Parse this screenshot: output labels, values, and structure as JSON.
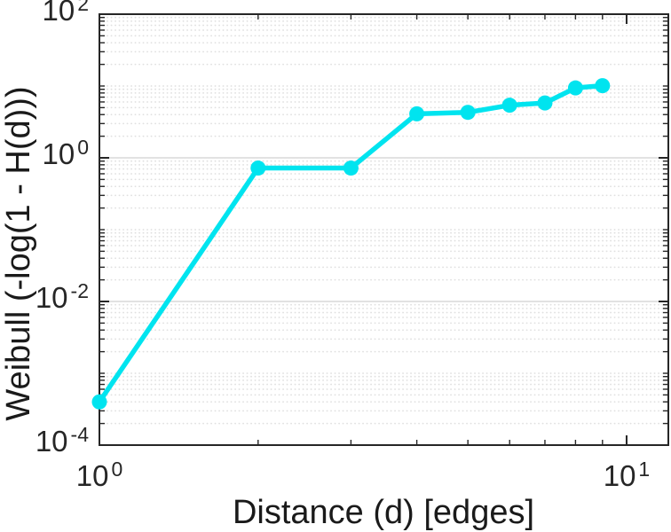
{
  "figure": {
    "background": "#ffffff"
  },
  "chart_data": {
    "type": "line",
    "title": "",
    "xlabel": "Distance (d) [edges]",
    "ylabel": "Weibull (-log(1 - H(d)))",
    "x_scale": "log",
    "y_scale": "log",
    "xlim": [
      1,
      12
    ],
    "ylim": [
      0.0001,
      100
    ],
    "x": [
      1,
      2,
      3,
      4,
      5,
      6,
      7,
      8,
      9
    ],
    "y": [
      0.0004,
      0.72,
      0.72,
      4.1,
      4.3,
      5.4,
      5.8,
      9.4,
      10.1
    ],
    "x_ticks": [
      {
        "base": "10",
        "exp": "0",
        "value": 1
      },
      {
        "base": "10",
        "exp": "1",
        "value": 10
      }
    ],
    "y_ticks": [
      {
        "base": "10",
        "exp": "-4",
        "value": 0.0001
      },
      {
        "base": "10",
        "exp": "-2",
        "value": 0.01
      },
      {
        "base": "10",
        "exp": "0",
        "value": 1
      },
      {
        "base": "10",
        "exp": "2",
        "value": 100
      }
    ],
    "grid": "horizontal major solid, log minor dotted",
    "legend": "none"
  },
  "style": {
    "line_color": "#00e4ef",
    "marker_color": "#00e4ef",
    "axis_color": "#262626",
    "major_grid_color": "#d8d8d8",
    "minor_grid_color": "#e0e0e0",
    "tick_label_color": "#262626",
    "axis_label_color": "#1a1a1a"
  }
}
